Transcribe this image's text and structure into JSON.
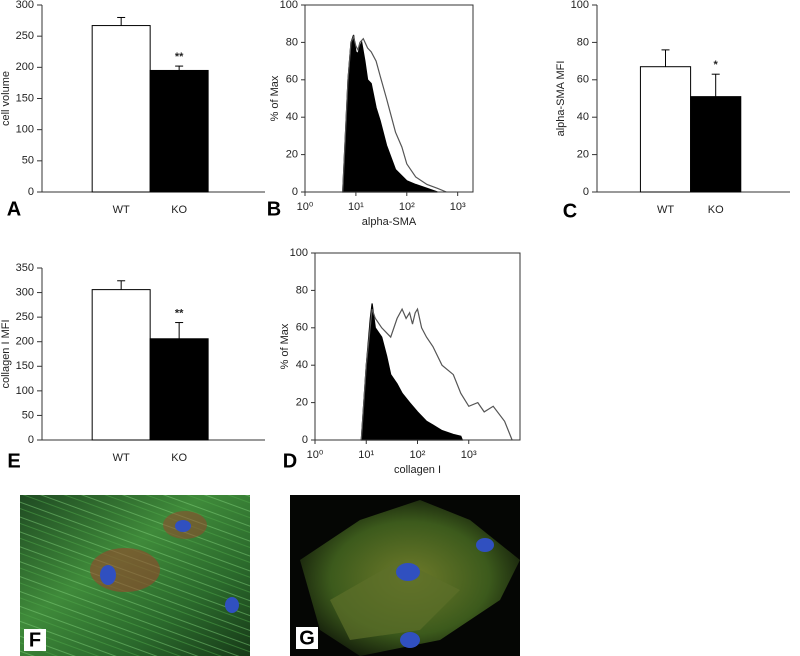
{
  "chart_data": [
    {
      "type": "bar",
      "panel": "A",
      "ylabel": "cell volume",
      "categories": [
        "WT",
        "KO"
      ],
      "values": [
        267,
        195
      ],
      "errors": [
        13,
        7
      ],
      "value_annotations": [
        null,
        "**"
      ],
      "colors": [
        "#ffffff",
        "#000000"
      ],
      "ylim": [
        0,
        300
      ],
      "yticks": [
        0,
        50,
        100,
        150,
        200,
        250,
        300
      ]
    },
    {
      "type": "line",
      "panel": "B",
      "xlabel": "alpha-SMA",
      "ylabel": "% of Max",
      "log_x": true,
      "xlim": [
        1,
        2000
      ],
      "ylim": [
        0,
        100
      ],
      "xticks": [
        {
          "value": 1,
          "label": "10⁰"
        },
        {
          "value": 10,
          "label": "10¹"
        },
        {
          "value": 100,
          "label": "10²"
        },
        {
          "value": 1000,
          "label": "10³"
        }
      ],
      "yticks": [
        0,
        20,
        40,
        60,
        80,
        100
      ],
      "series": [
        {
          "color": "#000000",
          "fill": true,
          "x": [
            5.5,
            7,
            8,
            9,
            10,
            11,
            12,
            13,
            15,
            17,
            20,
            25,
            30,
            40,
            60,
            100,
            150,
            250,
            400
          ],
          "values": [
            0,
            60,
            80,
            84,
            75,
            74,
            78,
            80,
            70,
            60,
            58,
            45,
            38,
            25,
            12,
            6,
            4,
            2,
            0
          ]
        },
        {
          "color": "#555555",
          "fill": false,
          "x": [
            5.5,
            7,
            8,
            9,
            10,
            11,
            12,
            14,
            17,
            20,
            25,
            30,
            40,
            50,
            60,
            80,
            100,
            150,
            250,
            400,
            600
          ],
          "values": [
            0,
            60,
            80,
            83,
            78,
            76,
            80,
            82,
            77,
            75,
            70,
            62,
            50,
            40,
            32,
            24,
            15,
            8,
            4,
            2,
            0
          ]
        }
      ]
    },
    {
      "type": "bar",
      "panel": "C",
      "ylabel": "alpha-SMA MFI",
      "categories": [
        "WT",
        "KO"
      ],
      "values": [
        67,
        51
      ],
      "errors": [
        9,
        12
      ],
      "value_annotations": [
        null,
        "*"
      ],
      "colors": [
        "#ffffff",
        "#000000"
      ],
      "ylim": [
        0,
        100
      ],
      "yticks": [
        0,
        20,
        40,
        60,
        80,
        100
      ]
    },
    {
      "type": "bar",
      "panel": "E",
      "ylabel": "collagen I MFI",
      "categories": [
        "WT",
        "KO"
      ],
      "values": [
        306,
        206
      ],
      "errors": [
        18,
        33
      ],
      "value_annotations": [
        null,
        "**"
      ],
      "colors": [
        "#ffffff",
        "#000000"
      ],
      "ylim": [
        0,
        350
      ],
      "yticks": [
        0,
        50,
        100,
        150,
        200,
        250,
        300,
        350
      ]
    },
    {
      "type": "line",
      "panel": "D",
      "xlabel": "collagen I",
      "ylabel": "% of Max",
      "log_x": true,
      "xlim": [
        1,
        10000
      ],
      "ylim": [
        0,
        100
      ],
      "xticks": [
        {
          "value": 1,
          "label": "10⁰"
        },
        {
          "value": 10,
          "label": "10¹"
        },
        {
          "value": 100,
          "label": "10²"
        },
        {
          "value": 1000,
          "label": "10³"
        }
      ],
      "yticks": [
        0,
        20,
        40,
        60,
        80,
        100
      ],
      "series": [
        {
          "color": "#000000",
          "fill": true,
          "x": [
            8,
            10,
            12,
            13,
            15,
            20,
            25,
            30,
            40,
            50,
            70,
            100,
            150,
            200,
            300,
            500,
            700,
            750
          ],
          "values": [
            0,
            40,
            65,
            73,
            60,
            55,
            45,
            35,
            30,
            25,
            20,
            15,
            10,
            8,
            5,
            3,
            2,
            0
          ]
        },
        {
          "color": "#555555",
          "fill": false,
          "x": [
            8,
            10,
            13,
            15,
            20,
            30,
            40,
            50,
            60,
            70,
            80,
            90,
            100,
            120,
            150,
            200,
            300,
            500,
            700,
            1000,
            1500,
            2000,
            3000,
            5000,
            7000
          ],
          "values": [
            0,
            40,
            70,
            65,
            60,
            55,
            65,
            70,
            65,
            68,
            62,
            68,
            70,
            60,
            55,
            50,
            40,
            35,
            25,
            18,
            20,
            15,
            18,
            10,
            0
          ]
        }
      ]
    }
  ],
  "images": [
    {
      "label": "F"
    },
    {
      "label": "G"
    }
  ]
}
